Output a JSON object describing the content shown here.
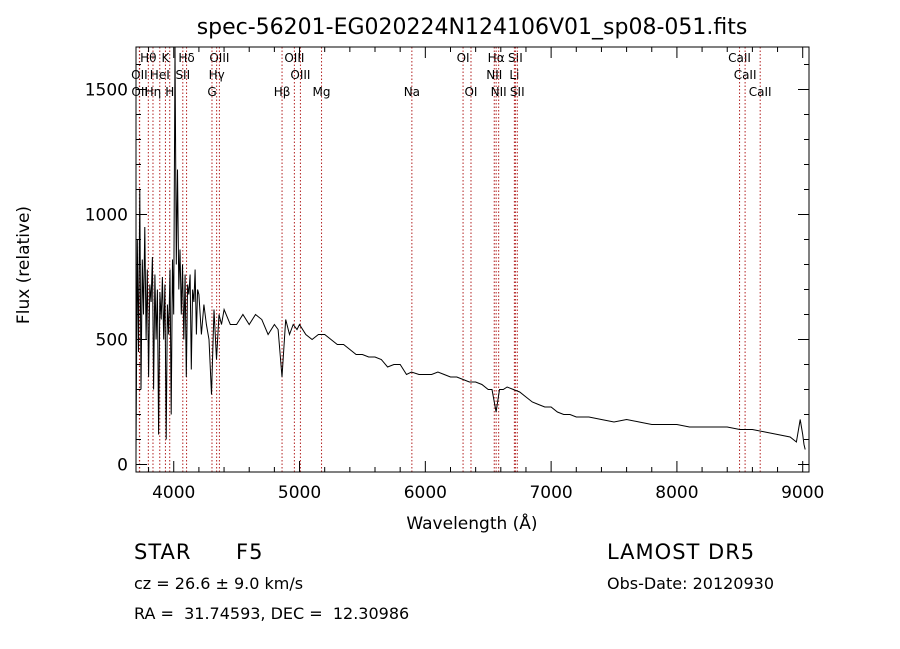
{
  "chart_data": {
    "type": "line",
    "title": "spec-56201-EG020224N124106V01_sp08-051.fits",
    "xlabel": "Wavelength (Å)",
    "ylabel": "Flux (relative)",
    "xlim": [
      3700,
      9050
    ],
    "ylim": [
      -30,
      1670
    ],
    "xticks": [
      4000,
      5000,
      6000,
      7000,
      8000,
      9000
    ],
    "yticks": [
      0,
      500,
      1000,
      1500
    ],
    "grid": false,
    "line_color": "#000000",
    "marker_color": "#b22222",
    "series": [
      {
        "x": [
          3700,
          3710,
          3720,
          3730,
          3740,
          3750,
          3760,
          3770,
          3780,
          3790,
          3800,
          3810,
          3820,
          3830,
          3840,
          3850,
          3860,
          3870,
          3880,
          3890,
          3900,
          3910,
          3920,
          3930,
          3940,
          3950,
          3960,
          3970,
          3980,
          3990,
          4000,
          4010,
          4020,
          4030,
          4040,
          4050,
          4060,
          4070,
          4080,
          4090,
          4100,
          4110,
          4120,
          4130,
          4140,
          4150,
          4160,
          4170,
          4180,
          4190,
          4200,
          4220,
          4240,
          4260,
          4280,
          4300,
          4320,
          4340,
          4360,
          4380,
          4400,
          4450,
          4500,
          4550,
          4600,
          4650,
          4700,
          4750,
          4800,
          4830,
          4861,
          4890,
          4920,
          4950,
          4980,
          5000,
          5050,
          5100,
          5150,
          5200,
          5250,
          5300,
          5350,
          5400,
          5450,
          5500,
          5550,
          5600,
          5650,
          5700,
          5750,
          5800,
          5850,
          5890,
          5950,
          6000,
          6050,
          6100,
          6150,
          6200,
          6250,
          6300,
          6350,
          6400,
          6450,
          6500,
          6530,
          6563,
          6590,
          6620,
          6650,
          6700,
          6750,
          6800,
          6850,
          6900,
          6950,
          7000,
          7050,
          7100,
          7150,
          7200,
          7300,
          7400,
          7500,
          7600,
          7700,
          7800,
          7900,
          8000,
          8100,
          8200,
          8300,
          8400,
          8500,
          8600,
          8700,
          8800,
          8900,
          8950,
          8980,
          9000,
          9010,
          9020
        ],
        "y": [
          40,
          900,
          450,
          1100,
          300,
          820,
          600,
          950,
          500,
          780,
          350,
          720,
          650,
          830,
          300,
          760,
          500,
          700,
          120,
          690,
          580,
          750,
          500,
          720,
          100,
          640,
          520,
          780,
          200,
          820,
          600,
          1700,
          800,
          1180,
          700,
          860,
          600,
          800,
          500,
          760,
          350,
          720,
          680,
          760,
          380,
          700,
          650,
          780,
          520,
          700,
          680,
          520,
          640,
          560,
          500,
          280,
          620,
          420,
          600,
          560,
          620,
          560,
          560,
          600,
          560,
          600,
          580,
          520,
          560,
          540,
          350,
          580,
          520,
          560,
          540,
          560,
          520,
          500,
          520,
          520,
          500,
          480,
          480,
          460,
          440,
          440,
          430,
          430,
          420,
          390,
          400,
          400,
          360,
          370,
          360,
          360,
          360,
          370,
          360,
          350,
          350,
          340,
          330,
          330,
          320,
          300,
          300,
          210,
          300,
          300,
          310,
          300,
          290,
          270,
          250,
          240,
          230,
          230,
          210,
          200,
          200,
          190,
          190,
          180,
          170,
          180,
          170,
          160,
          160,
          160,
          150,
          150,
          150,
          150,
          140,
          140,
          130,
          120,
          110,
          90,
          180,
          120,
          80,
          60
        ]
      }
    ],
    "lines": [
      {
        "name": "Hθ",
        "x": 3798,
        "row": 1
      },
      {
        "name": "K",
        "x": 3934,
        "row": 1
      },
      {
        "name": "Hδ",
        "x": 4102,
        "row": 1
      },
      {
        "name": "OIII",
        "x": 4363,
        "row": 1
      },
      {
        "name": "OIII",
        "x": 4959,
        "row": 1
      },
      {
        "name": "OI",
        "x": 6300,
        "row": 1
      },
      {
        "name": "Hα",
        "x": 6563,
        "row": 1
      },
      {
        "name": "SII",
        "x": 6716,
        "row": 1
      },
      {
        "name": "CaII",
        "x": 8498,
        "row": 1
      },
      {
        "name": "OII",
        "x": 3727,
        "row": 2
      },
      {
        "name": "HeI",
        "x": 3889,
        "row": 2
      },
      {
        "name": "SII",
        "x": 4072,
        "row": 2
      },
      {
        "name": "Hγ",
        "x": 4341,
        "row": 2
      },
      {
        "name": "OIII",
        "x": 5007,
        "row": 2
      },
      {
        "name": "NII",
        "x": 6548,
        "row": 2
      },
      {
        "name": "Li",
        "x": 6708,
        "row": 2
      },
      {
        "name": "CaII",
        "x": 8542,
        "row": 2
      },
      {
        "name": "OII",
        "x": 3729,
        "row": 3
      },
      {
        "name": "Hη",
        "x": 3835,
        "row": 3
      },
      {
        "name": "H",
        "x": 3968,
        "row": 3
      },
      {
        "name": "G",
        "x": 4304,
        "row": 3
      },
      {
        "name": "Hβ",
        "x": 4861,
        "row": 3
      },
      {
        "name": "Mg",
        "x": 5175,
        "row": 3
      },
      {
        "name": "Na",
        "x": 5893,
        "row": 3
      },
      {
        "name": "OI",
        "x": 6363,
        "row": 3
      },
      {
        "name": "NII",
        "x": 6583,
        "row": 3
      },
      {
        "name": "SII",
        "x": 6731,
        "row": 3
      },
      {
        "name": "CaII",
        "x": 8662,
        "row": 3
      }
    ]
  },
  "footer": {
    "obj_class": "STAR",
    "obj_subclass": "F5",
    "survey": "LAMOST DR5",
    "cz": "cz = 26.6 ± 9.0 km/s",
    "obs_date": "Obs-Date: 20120930",
    "radec": "RA =  31.74593, DEC =  12.30986"
  }
}
